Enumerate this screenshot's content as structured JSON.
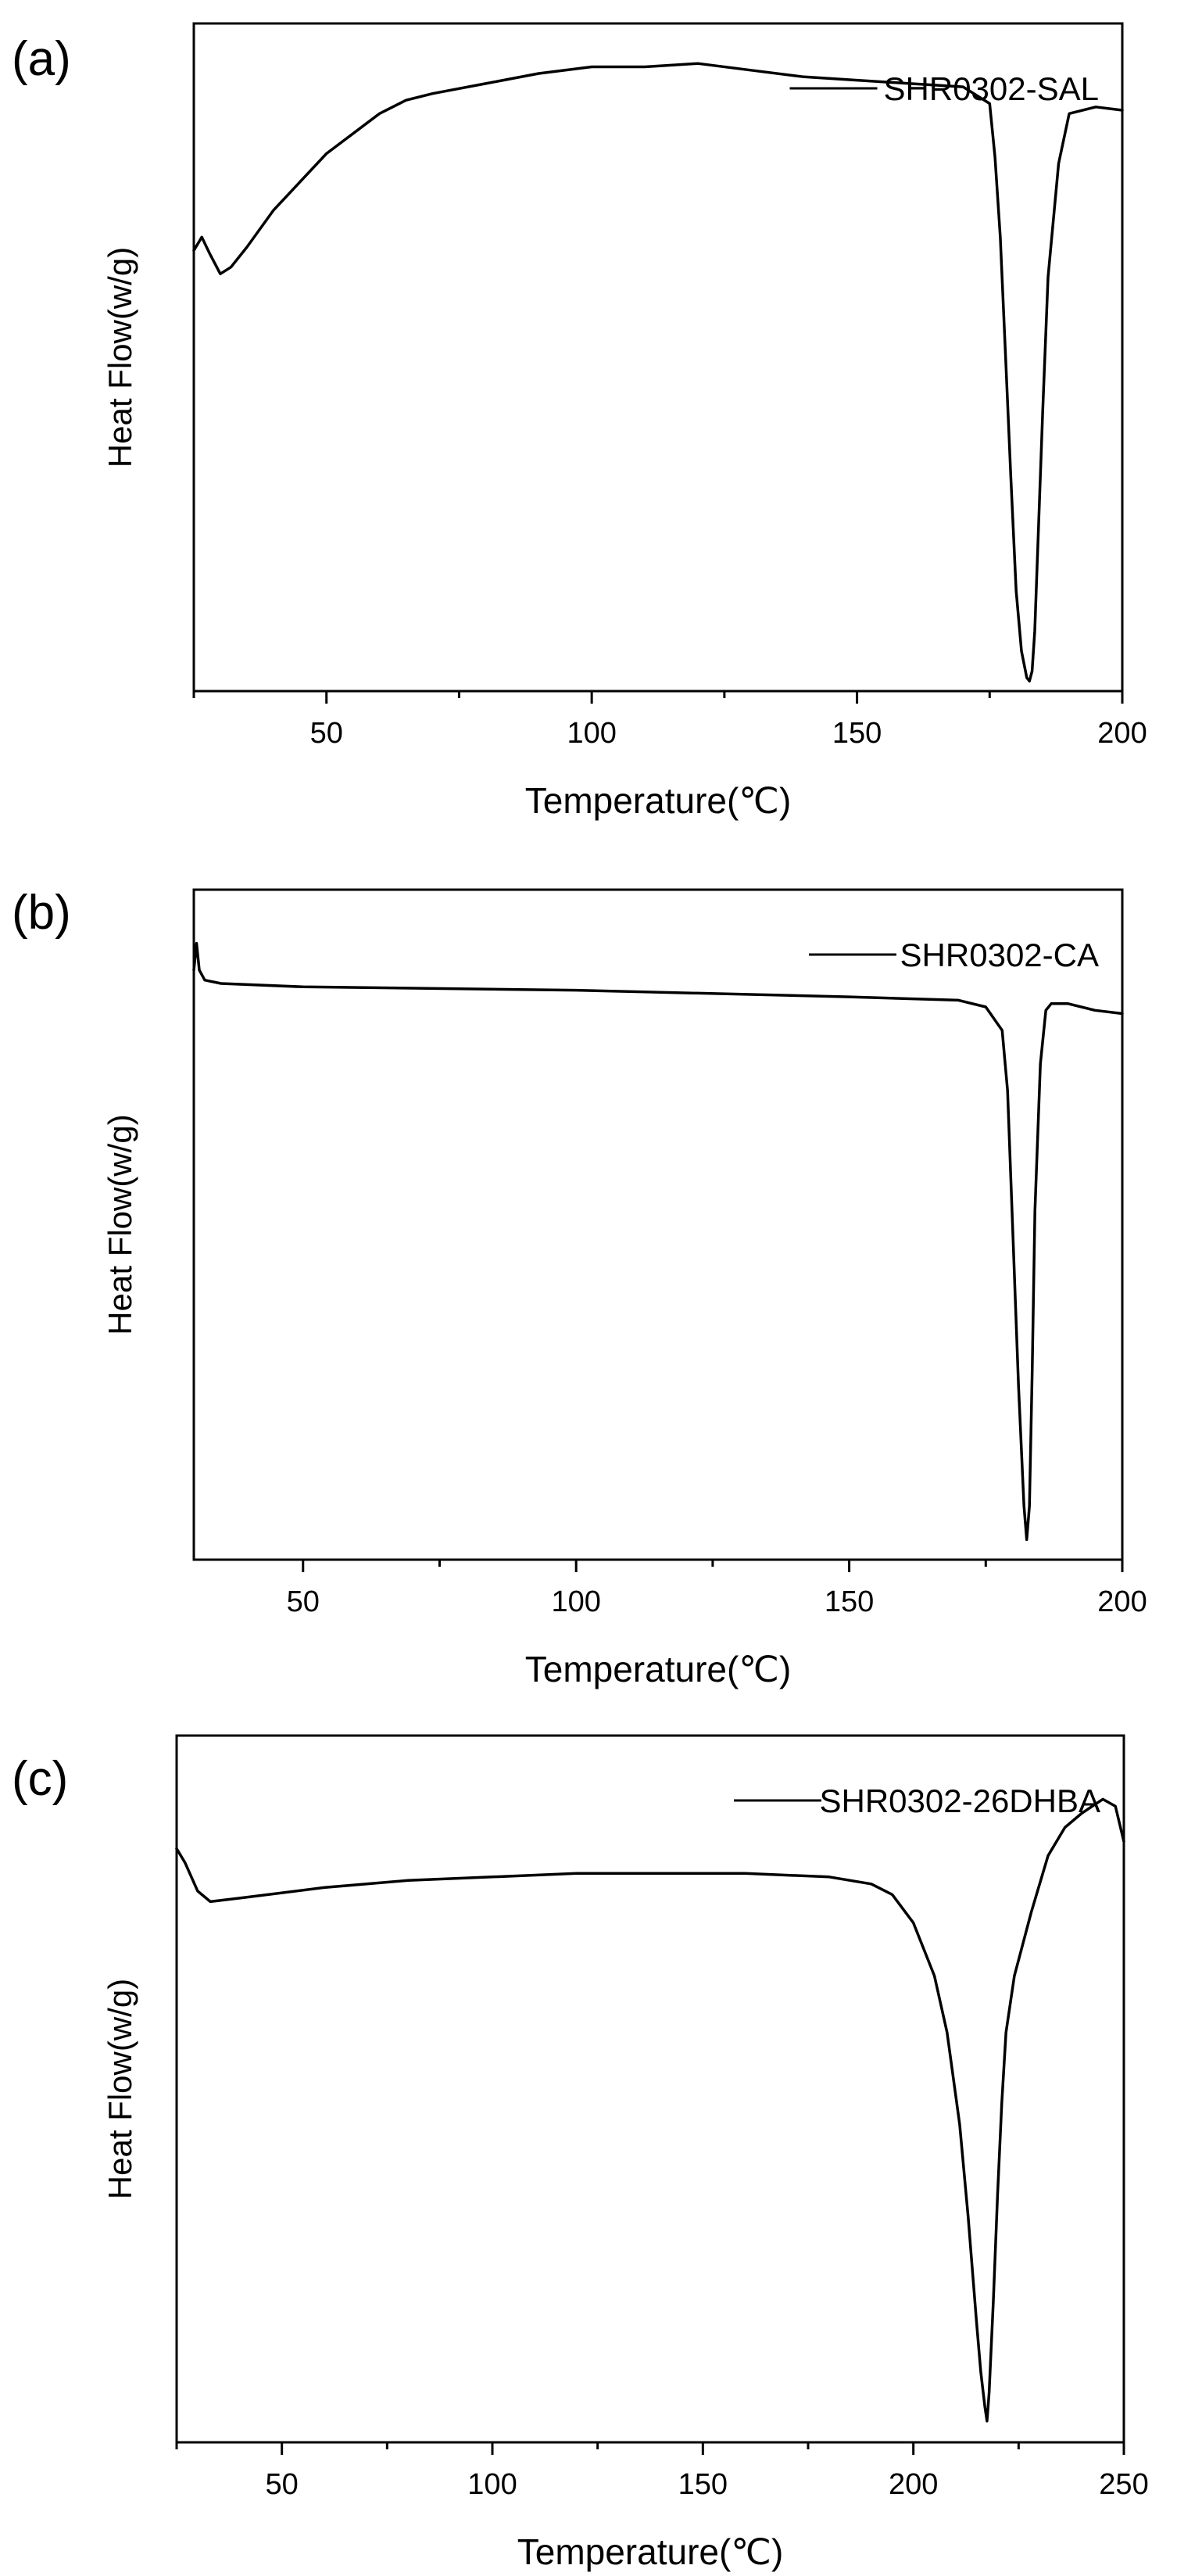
{
  "panels": [
    {
      "letter": "(a)",
      "legend": "SHR0302-SAL",
      "ylabel": "Heat Flow(w/g)",
      "xlabel": "Temperature(℃)"
    },
    {
      "letter": "(b)",
      "legend": "SHR0302-CA",
      "ylabel": "Heat Flow(w/g)",
      "xlabel": "Temperature(℃)"
    },
    {
      "letter": "(c)",
      "legend": "SHR0302-26DHBA",
      "ylabel": "Heat Flow(w/g)",
      "xlabel": "Temperature(℃)"
    }
  ],
  "chart_data": [
    {
      "type": "line",
      "title": "",
      "xlabel": "Temperature(℃)",
      "ylabel": "Heat Flow(w/g)",
      "xlim": [
        25,
        200
      ],
      "ylim": [
        0,
        100
      ],
      "xticks": [
        50,
        100,
        150,
        200
      ],
      "yticks_labeled": false,
      "grid": false,
      "legend_position": "top-right",
      "series": [
        {
          "name": "SHR0302-SAL",
          "color": "#000000",
          "x": [
            25,
            26.5,
            28,
            30,
            32,
            35,
            40,
            50,
            60,
            65,
            70,
            80,
            90,
            100,
            110,
            120,
            130,
            140,
            150,
            160,
            170,
            175,
            176,
            177,
            178,
            179,
            180,
            181,
            182,
            182.5,
            183,
            183.5,
            184,
            185,
            186,
            188,
            190,
            195,
            200
          ],
          "y": [
            66,
            68,
            65.5,
            62.5,
            63.5,
            66.5,
            72,
            80.5,
            86.5,
            88.5,
            89.5,
            91,
            92.5,
            93.5,
            93.5,
            94,
            93,
            92,
            91.5,
            91,
            90.5,
            88,
            80,
            68,
            50,
            32,
            15,
            6,
            2,
            1.5,
            3,
            9,
            20,
            42,
            62,
            79,
            86.5,
            87.5,
            87
          ]
        }
      ]
    },
    {
      "type": "line",
      "title": "",
      "xlabel": "Temperature(℃)",
      "ylabel": "Heat Flow(w/g)",
      "xlim": [
        30,
        200
      ],
      "ylim": [
        0,
        100
      ],
      "xticks": [
        50,
        100,
        150,
        200
      ],
      "yticks_labeled": false,
      "grid": false,
      "legend_position": "top-right",
      "series": [
        {
          "name": "SHR0302-CA",
          "color": "#000000",
          "x": [
            30,
            30.5,
            31,
            32,
            35,
            50,
            100,
            150,
            170,
            175,
            178,
            179,
            180,
            181,
            182,
            182.5,
            183,
            183.5,
            184,
            185,
            186,
            187,
            190,
            195,
            200
          ],
          "y": [
            88,
            92,
            88,
            86.5,
            86,
            85.5,
            85,
            84,
            83.5,
            82.5,
            79,
            70,
            48,
            26,
            8,
            3,
            8,
            28,
            52,
            74,
            82,
            83,
            83,
            82,
            81.5
          ]
        }
      ]
    },
    {
      "type": "line",
      "title": "",
      "xlabel": "Temperature(℃)",
      "ylabel": "Heat Flow(w/g)",
      "xlim": [
        25,
        250
      ],
      "ylim": [
        0,
        100
      ],
      "xticks": [
        50,
        100,
        150,
        200,
        250
      ],
      "yticks_labeled": false,
      "grid": false,
      "legend_position": "top-right",
      "series": [
        {
          "name": "SHR0302-26DHBA",
          "color": "#000000",
          "x": [
            25,
            27,
            30,
            33,
            40,
            60,
            80,
            100,
            120,
            140,
            160,
            180,
            190,
            195,
            200,
            205,
            208,
            211,
            213,
            215,
            216,
            217,
            217.5,
            218,
            219,
            220,
            221,
            222,
            224,
            228,
            232,
            236,
            240,
            245,
            248,
            250
          ],
          "y": [
            84,
            82,
            78,
            76.5,
            77,
            78.5,
            79.5,
            80,
            80.5,
            80.5,
            80.5,
            80,
            79,
            77.5,
            73.5,
            66,
            58,
            45,
            32,
            17,
            10,
            5,
            3,
            7,
            20,
            35,
            48,
            58,
            66,
            75,
            83,
            87,
            89,
            91,
            90,
            85
          ]
        }
      ]
    }
  ]
}
